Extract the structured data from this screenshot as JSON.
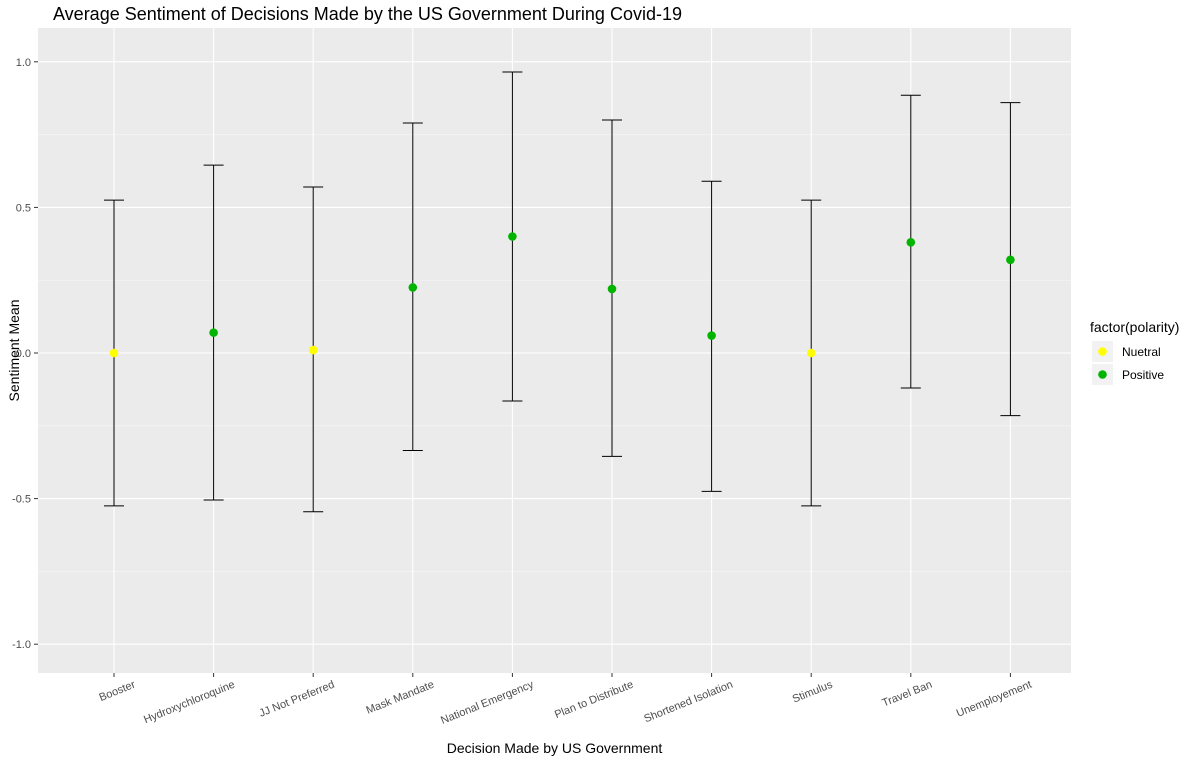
{
  "chart_data": {
    "type": "scatter",
    "title": "Average Sentiment of Decisions Made by the US Government During Covid-19",
    "xlabel": "Decision Made by US Government",
    "ylabel": "Sentiment Mean",
    "ylim": [
      -1.1,
      1.1
    ],
    "yticks": [
      -1.0,
      -0.5,
      0.0,
      0.5,
      1.0
    ],
    "ytick_labels": [
      "-1.0",
      "-0.5",
      "0.0",
      "0.5",
      "1.0"
    ],
    "grid": true,
    "categories": [
      "Booster",
      "Hydroxychloroquine",
      "JJ Not Preferred",
      "Mask Mandate",
      "National Emergency",
      "Plan to Distribute",
      "Shortened Isolation",
      "Stimulus",
      "Travel Ban",
      "Unemployement"
    ],
    "points": [
      {
        "category": "Booster",
        "mean": 0.0,
        "lower": -0.525,
        "upper": 0.525,
        "polarity": "Nuetral"
      },
      {
        "category": "Hydroxychloroquine",
        "mean": 0.07,
        "lower": -0.505,
        "upper": 0.645,
        "polarity": "Positive"
      },
      {
        "category": "JJ Not Preferred",
        "mean": 0.01,
        "lower": -0.545,
        "upper": 0.57,
        "polarity": "Nuetral"
      },
      {
        "category": "Mask Mandate",
        "mean": 0.225,
        "lower": -0.335,
        "upper": 0.79,
        "polarity": "Positive"
      },
      {
        "category": "National Emergency",
        "mean": 0.4,
        "lower": -0.165,
        "upper": 0.965,
        "polarity": "Positive"
      },
      {
        "category": "Plan to Distribute",
        "mean": 0.22,
        "lower": -0.355,
        "upper": 0.8,
        "polarity": "Positive"
      },
      {
        "category": "Shortened Isolation",
        "mean": 0.06,
        "lower": -0.475,
        "upper": 0.59,
        "polarity": "Positive"
      },
      {
        "category": "Stimulus",
        "mean": 0.0,
        "lower": -0.525,
        "upper": 0.525,
        "polarity": "Nuetral"
      },
      {
        "category": "Travel Ban",
        "mean": 0.38,
        "lower": -0.12,
        "upper": 0.885,
        "polarity": "Positive"
      },
      {
        "category": "Unemployement",
        "mean": 0.32,
        "lower": -0.215,
        "upper": 0.86,
        "polarity": "Positive"
      }
    ],
    "legend": {
      "title": "factor(polarity)",
      "placement": "right",
      "entries": [
        {
          "label": "Nuetral",
          "color": "#ffff00"
        },
        {
          "label": "Positive",
          "color": "#00b400"
        }
      ]
    },
    "colors": {
      "panel": "#ebebeb",
      "grid_major": "#ffffff",
      "errorbar": "#000000",
      "Nuetral": "#ffff00",
      "Positive": "#00b400"
    }
  }
}
